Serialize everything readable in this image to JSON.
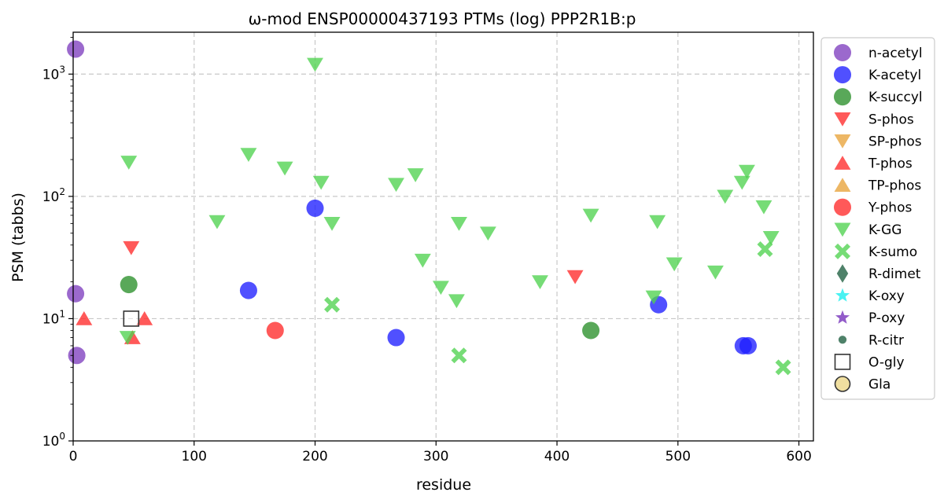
{
  "chart_data": {
    "type": "scatter",
    "title": "ω-mod ENSP00000437193 PTMs (log) PPP2R1B:p",
    "xlabel": "residue",
    "ylabel": "PSM (tabbs)",
    "xlim": [
      0,
      612
    ],
    "ylim": [
      1,
      2200
    ],
    "yscale": "log",
    "grid": true,
    "legend_position": "outside-right",
    "x_ticks": [
      0,
      100,
      200,
      300,
      400,
      500,
      600
    ],
    "y_ticks": [
      {
        "value": 1,
        "base": "10",
        "exp": "0"
      },
      {
        "value": 10,
        "base": "10",
        "exp": "1"
      },
      {
        "value": 100,
        "base": "10",
        "exp": "2"
      },
      {
        "value": 1000,
        "base": "10",
        "exp": "3"
      }
    ],
    "series": [
      {
        "name": "n-acetyl",
        "marker": "circle",
        "color": "#7f3fbf",
        "points": [
          [
            2,
            1600
          ],
          [
            2,
            16
          ],
          [
            3,
            5
          ]
        ]
      },
      {
        "name": "K-acetyl",
        "marker": "circle",
        "color": "#1f1fff",
        "points": [
          [
            145,
            17
          ],
          [
            200,
            80
          ],
          [
            267,
            7
          ],
          [
            484,
            13
          ],
          [
            554,
            6
          ],
          [
            558,
            6
          ]
        ]
      },
      {
        "name": "K-succyl",
        "marker": "circle",
        "color": "#2a8f2a",
        "points": [
          [
            46,
            19
          ],
          [
            428,
            8
          ]
        ]
      },
      {
        "name": "S-phos",
        "marker": "triangle-down",
        "color": "#ff2a2a",
        "points": [
          [
            48,
            38
          ],
          [
            415,
            22
          ]
        ]
      },
      {
        "name": "SP-phos",
        "marker": "triangle-down",
        "color": "#e8a33a",
        "points": []
      },
      {
        "name": "T-phos",
        "marker": "triangle-up",
        "color": "#ff2a2a",
        "points": [
          [
            9,
            10
          ],
          [
            49,
            7
          ],
          [
            59,
            10
          ]
        ]
      },
      {
        "name": "TP-phos",
        "marker": "triangle-up",
        "color": "#e8a33a",
        "points": []
      },
      {
        "name": "Y-phos",
        "marker": "circle",
        "color": "#ff2a2a",
        "points": [
          [
            167,
            8
          ]
        ]
      },
      {
        "name": "K-GG",
        "marker": "triangle-down",
        "color": "#4fd24f",
        "points": [
          [
            46,
            190
          ],
          [
            45,
            7
          ],
          [
            119,
            62
          ],
          [
            145,
            220
          ],
          [
            175,
            170
          ],
          [
            200,
            1200
          ],
          [
            205,
            130
          ],
          [
            214,
            60
          ],
          [
            267,
            125
          ],
          [
            283,
            150
          ],
          [
            289,
            30
          ],
          [
            304,
            18
          ],
          [
            317,
            14
          ],
          [
            319,
            60
          ],
          [
            343,
            50
          ],
          [
            386,
            20
          ],
          [
            428,
            70
          ],
          [
            480,
            15
          ],
          [
            483,
            62
          ],
          [
            497,
            28
          ],
          [
            531,
            24
          ],
          [
            539,
            100
          ],
          [
            553,
            130
          ],
          [
            557,
            160
          ],
          [
            571,
            82
          ],
          [
            577,
            46
          ]
        ]
      },
      {
        "name": "K-sumo",
        "marker": "x",
        "color": "#4fd24f",
        "points": [
          [
            214,
            13
          ],
          [
            319,
            5
          ],
          [
            572,
            37
          ],
          [
            587,
            4
          ]
        ]
      },
      {
        "name": "R-dimet",
        "marker": "diamond",
        "color": "#2f6b4f",
        "points": []
      },
      {
        "name": "K-oxy",
        "marker": "star",
        "color": "#2af0f0",
        "points": []
      },
      {
        "name": "P-oxy",
        "marker": "star",
        "color": "#7f3fbf",
        "points": []
      },
      {
        "name": "R-citr",
        "marker": "small-circle",
        "color": "#2f6b4f",
        "points": []
      },
      {
        "name": "O-gly",
        "marker": "square-open",
        "color": "#333333",
        "points": [
          [
            48,
            10
          ]
        ]
      },
      {
        "name": "Gla",
        "marker": "circle-yellow",
        "color": "#f0dfa0",
        "points": []
      }
    ]
  }
}
